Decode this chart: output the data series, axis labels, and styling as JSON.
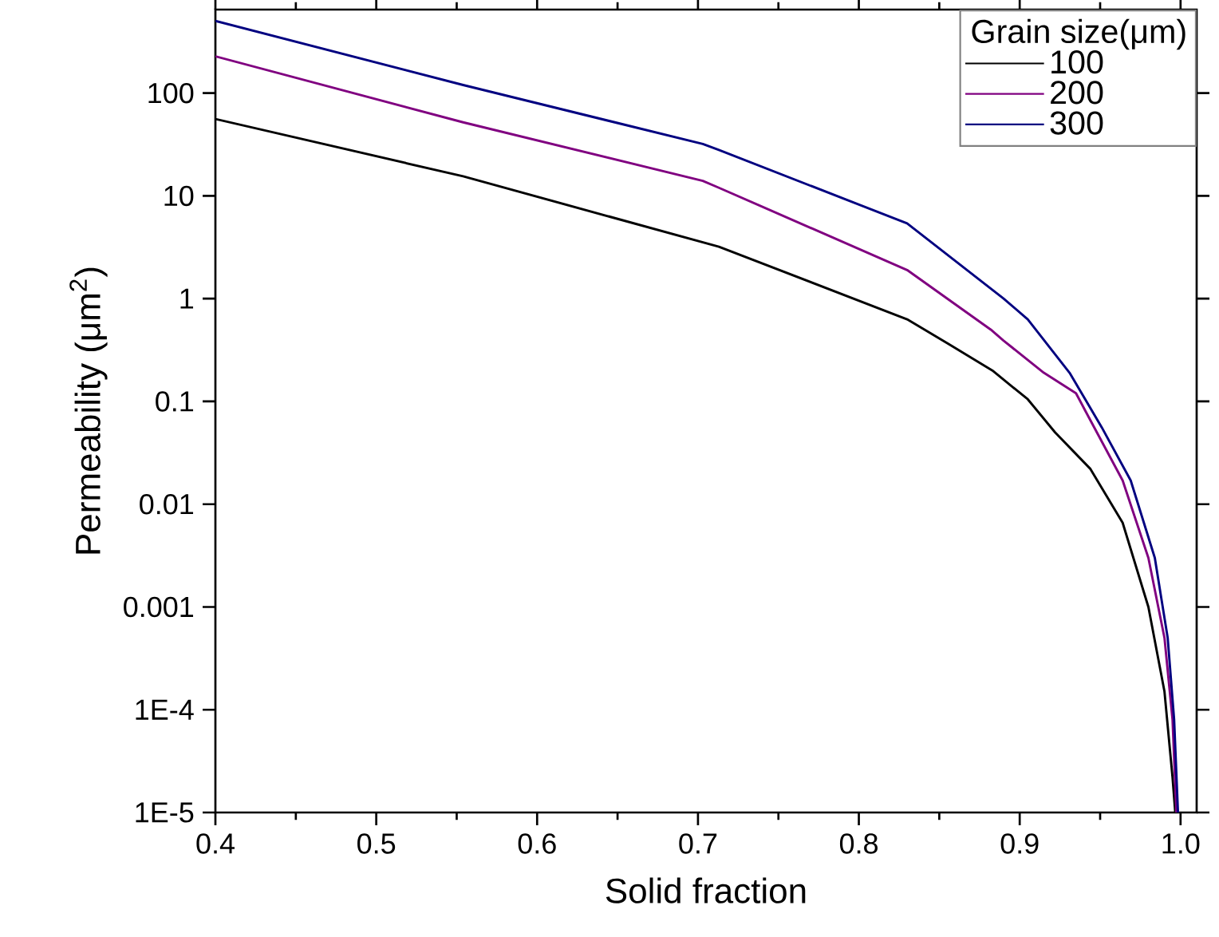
{
  "chart_data": {
    "type": "line",
    "xlabel": "Solid fraction",
    "ylabel": "Permeability (μm$^{2}$)",
    "legend_title": "Grain size(μm)",
    "xlim": [
      0.4,
      1.01
    ],
    "ylim": [
      1e-05,
      650
    ],
    "xticks": [
      {
        "value": 0.4,
        "label": "0.4"
      },
      {
        "value": 0.5,
        "label": "0.5"
      },
      {
        "value": 0.6,
        "label": "0.6"
      },
      {
        "value": 0.7,
        "label": "0.7"
      },
      {
        "value": 0.8,
        "label": "0.8"
      },
      {
        "value": 0.9,
        "label": "0.9"
      },
      {
        "value": 1.0,
        "label": "1.0"
      }
    ],
    "yticks": [
      {
        "value": 100,
        "label": "100"
      },
      {
        "value": 10,
        "label": "10"
      },
      {
        "value": 1,
        "label": "1"
      },
      {
        "value": 0.1,
        "label": "0.1"
      },
      {
        "value": 0.01,
        "label": "0.01"
      },
      {
        "value": 0.001,
        "label": "0.001"
      },
      {
        "value": 0.0001,
        "label": "1E-4"
      },
      {
        "value": 1e-05,
        "label": "1E-5"
      }
    ],
    "log": "y",
    "legend": "top right",
    "line_style": "solid",
    "series": [
      {
        "name": "100",
        "color": "#000000",
        "x": [
          0.4,
          0.554,
          0.713,
          0.83,
          0.856,
          0.883,
          0.905,
          0.922,
          0.944,
          0.964,
          0.98,
          0.99,
          0.995,
          0.9967
        ],
        "values": [
          56,
          15.5,
          3.2,
          0.63,
          0.36,
          0.2,
          0.105,
          0.05,
          0.022,
          0.0066,
          0.001,
          0.00015,
          2.2e-05,
          1e-05
        ]
      },
      {
        "name": "200",
        "color": "#800080",
        "x": [
          0.4,
          0.554,
          0.703,
          0.713,
          0.83,
          0.882,
          0.89,
          0.915,
          0.935,
          0.941,
          0.964,
          0.98,
          0.99,
          0.995,
          0.9974
        ],
        "values": [
          228,
          52,
          14,
          12,
          1.9,
          0.5,
          0.39,
          0.19,
          0.12,
          0.08,
          0.017,
          0.003,
          0.0005,
          8e-05,
          1e-05
        ]
      },
      {
        "name": "300",
        "color": "#000080",
        "x": [
          0.4,
          0.554,
          0.703,
          0.713,
          0.83,
          0.89,
          0.905,
          0.931,
          0.951,
          0.969,
          0.984,
          0.992,
          0.996,
          0.9984
        ],
        "values": [
          505,
          120,
          32,
          28,
          5.4,
          1.0,
          0.63,
          0.19,
          0.056,
          0.017,
          0.003,
          0.0005,
          8e-05,
          1e-05
        ]
      }
    ]
  }
}
